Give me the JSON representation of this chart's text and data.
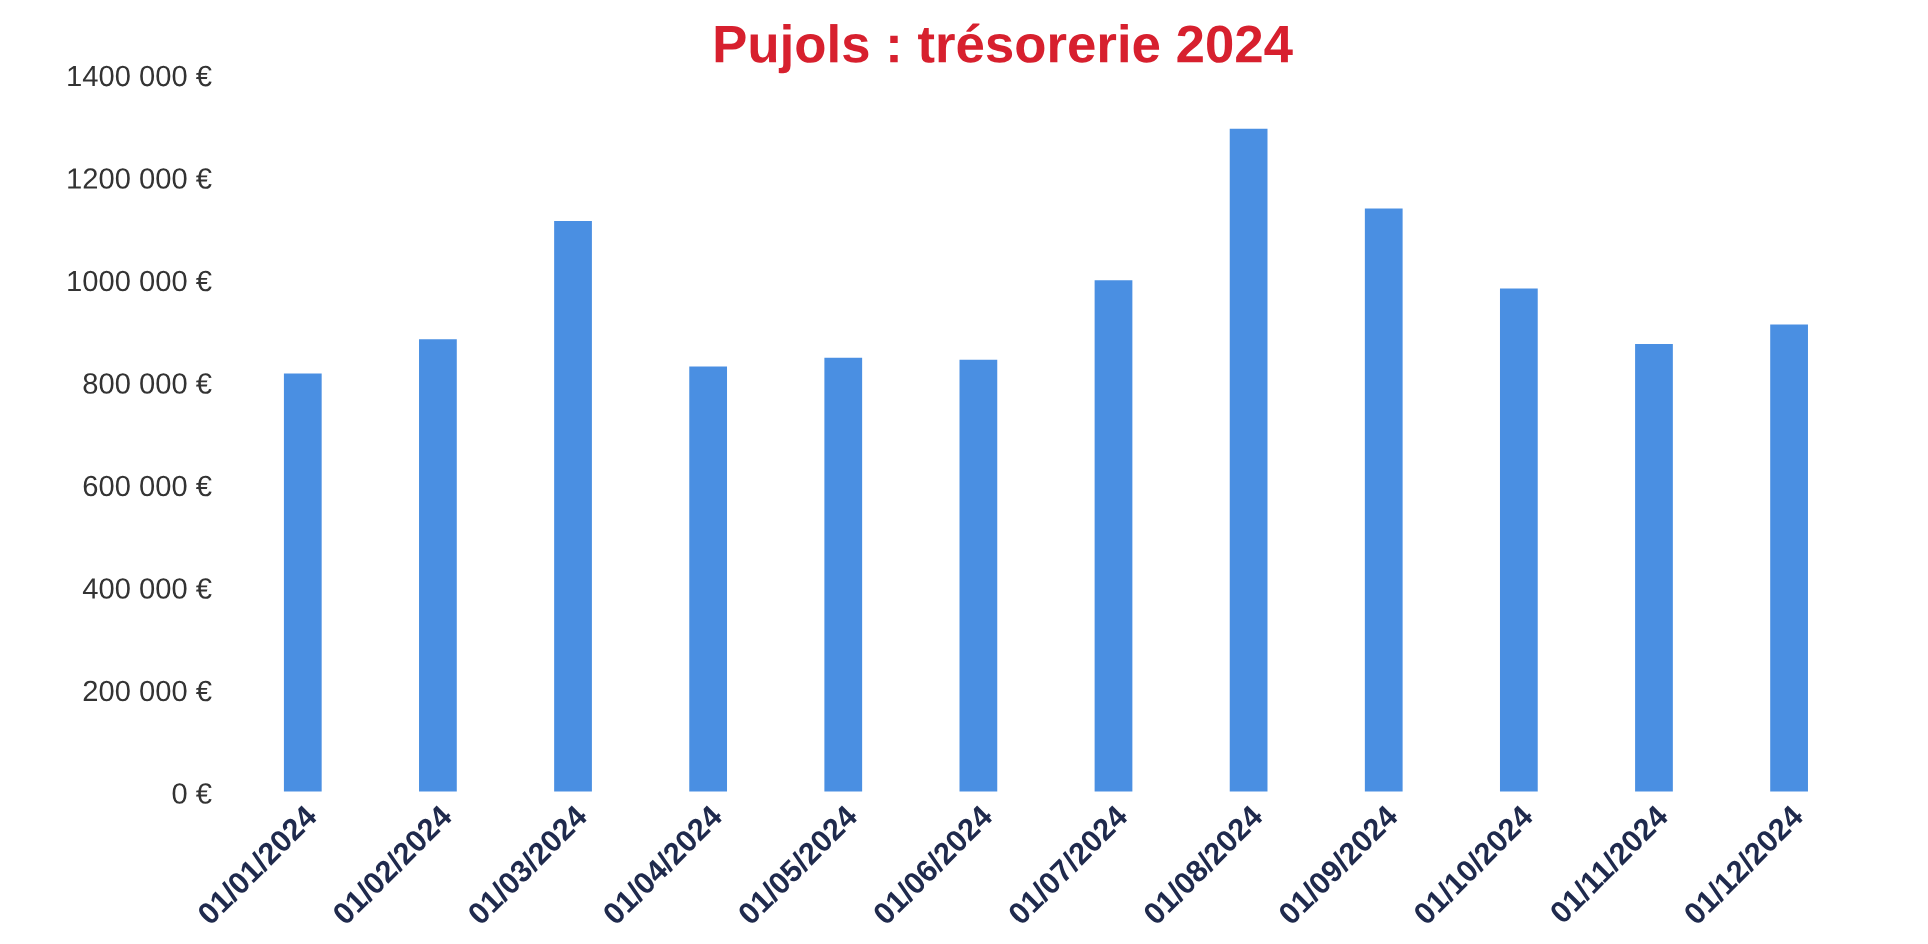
{
  "chart_data": {
    "type": "bar",
    "title": "Pujols : trésorerie 2024",
    "categories": [
      "01/01/2024",
      "01/02/2024",
      "01/03/2024",
      "01/04/2024",
      "01/05/2024",
      "01/06/2024",
      "01/07/2024",
      "01/08/2024",
      "01/09/2024",
      "01/10/2024",
      "01/11/2024",
      "01/12/2024"
    ],
    "values": [
      821000,
      888000,
      1119000,
      835000,
      852000,
      848000,
      1003000,
      1299000,
      1143000,
      987000,
      879000,
      917000
    ],
    "color": "#4a8fe2",
    "ylim": [
      0,
      1400000
    ],
    "yticks": [
      {
        "value": 0,
        "label": "0 €"
      },
      {
        "value": 200000,
        "label": "200 000 €"
      },
      {
        "value": 400000,
        "label": "400 000 €"
      },
      {
        "value": 600000,
        "label": "600 000 €"
      },
      {
        "value": 800000,
        "label": "800 000 €"
      },
      {
        "value": 1000000,
        "label": "1000 000 €"
      },
      {
        "value": 1200000,
        "label": "1200 000 €"
      },
      {
        "value": 1400000,
        "label": "1400 000 €"
      }
    ],
    "grid": false,
    "legend": false
  }
}
